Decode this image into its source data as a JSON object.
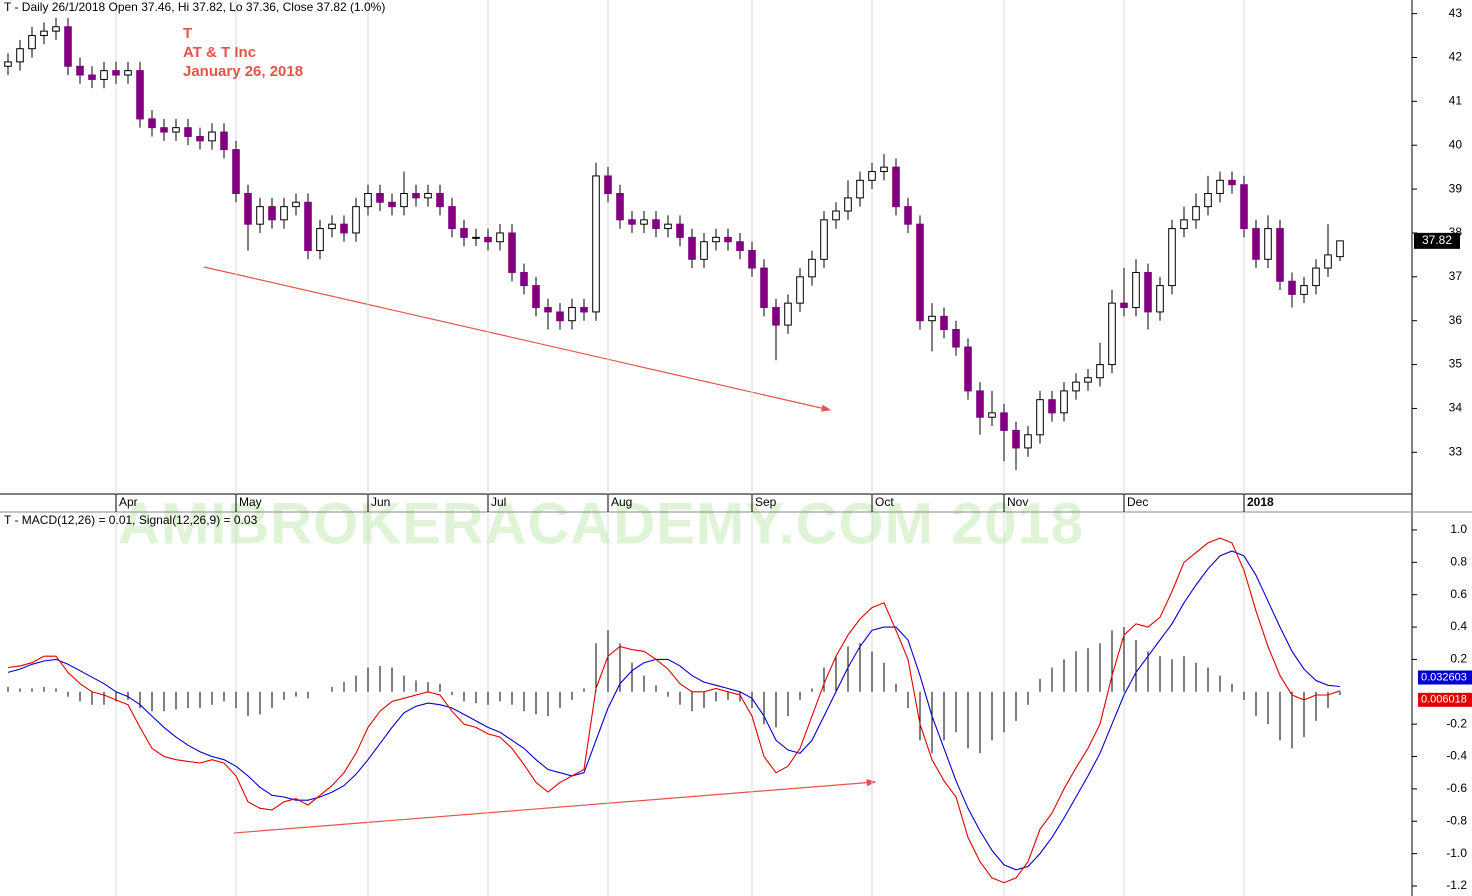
{
  "chart_data": [
    {
      "type": "candlestick",
      "title": "T - Daily 26/1/2018 Open 37.46, Hi 37.82, Lo 37.36, Close 37.82 (1.0%)",
      "annotations": [
        "T",
        "AT & T Inc",
        "January 26, 2018"
      ],
      "categories": [
        null,
        null,
        null,
        null,
        null,
        null,
        null,
        null,
        null,
        "Apr",
        null,
        null,
        null,
        null,
        null,
        null,
        null,
        null,
        null,
        "May",
        null,
        null,
        null,
        null,
        null,
        null,
        null,
        null,
        null,
        null,
        "Jun",
        null,
        null,
        null,
        null,
        null,
        null,
        null,
        null,
        null,
        "Jul",
        null,
        null,
        null,
        null,
        null,
        null,
        null,
        null,
        null,
        "Aug",
        null,
        null,
        null,
        null,
        null,
        null,
        null,
        null,
        null,
        null,
        null,
        "Sep",
        null,
        null,
        null,
        null,
        null,
        null,
        null,
        null,
        null,
        "Oct",
        null,
        null,
        null,
        null,
        null,
        null,
        null,
        null,
        null,
        null,
        "Nov",
        null,
        null,
        null,
        null,
        null,
        null,
        null,
        null,
        null,
        "Dec",
        null,
        null,
        null,
        null,
        null,
        null,
        null,
        null,
        null,
        "2018",
        null,
        null,
        null,
        null,
        null,
        null,
        null,
        null
      ],
      "open": [
        41.8,
        41.9,
        42.2,
        42.5,
        42.6,
        42.7,
        41.8,
        41.6,
        41.5,
        41.7,
        41.6,
        41.7,
        40.6,
        40.4,
        40.3,
        40.4,
        40.2,
        40.1,
        40.3,
        39.9,
        38.9,
        38.2,
        38.6,
        38.3,
        38.6,
        38.7,
        37.6,
        38.1,
        38.2,
        38.0,
        38.6,
        38.9,
        38.7,
        38.6,
        38.9,
        38.8,
        38.9,
        38.6,
        38.1,
        37.9,
        37.9,
        37.8,
        38.0,
        37.1,
        36.8,
        36.3,
        36.2,
        36.0,
        36.3,
        36.2,
        39.3,
        38.9,
        38.3,
        38.2,
        38.3,
        38.1,
        38.2,
        37.9,
        37.4,
        37.8,
        37.9,
        37.8,
        37.6,
        37.2,
        36.3,
        35.9,
        36.4,
        37.0,
        37.4,
        38.3,
        38.5,
        38.8,
        39.2,
        39.4,
        39.5,
        38.6,
        38.2,
        36.0,
        36.1,
        35.8,
        35.4,
        34.4,
        33.8,
        33.9,
        33.5,
        33.1,
        33.4,
        34.2,
        33.9,
        34.4,
        34.6,
        34.7,
        35.0,
        36.4,
        36.3,
        37.1,
        36.2,
        36.8,
        38.1,
        38.3,
        38.6,
        38.9,
        39.2,
        39.1,
        38.1,
        37.4,
        38.1,
        36.9,
        36.6,
        36.8,
        37.2,
        37.46
      ],
      "high": [
        42.1,
        42.4,
        42.7,
        42.8,
        42.9,
        42.9,
        42.0,
        41.8,
        41.9,
        41.9,
        41.9,
        41.9,
        40.8,
        40.6,
        40.6,
        40.6,
        40.4,
        40.5,
        40.5,
        40.1,
        39.1,
        38.8,
        38.8,
        38.8,
        38.9,
        38.9,
        38.3,
        38.4,
        38.4,
        38.8,
        39.1,
        39.1,
        38.9,
        39.4,
        39.1,
        39.1,
        39.1,
        38.8,
        38.3,
        38.1,
        38.1,
        38.2,
        38.2,
        37.3,
        37.0,
        36.5,
        36.4,
        36.5,
        36.5,
        39.6,
        39.5,
        39.1,
        38.5,
        38.5,
        38.5,
        38.4,
        38.4,
        38.1,
        38.0,
        38.1,
        38.1,
        38.0,
        37.8,
        37.4,
        36.5,
        36.6,
        37.2,
        37.6,
        38.5,
        38.7,
        39.2,
        39.4,
        39.6,
        39.8,
        39.7,
        38.8,
        38.4,
        36.4,
        36.3,
        36.0,
        35.6,
        34.6,
        34.4,
        34.1,
        33.7,
        33.6,
        34.4,
        34.4,
        34.6,
        34.8,
        34.9,
        35.5,
        36.7,
        37.2,
        37.4,
        37.3,
        37.0,
        38.3,
        38.6,
        38.9,
        39.3,
        39.4,
        39.4,
        39.3,
        38.3,
        38.4,
        38.3,
        37.1,
        37.0,
        37.4,
        38.2,
        37.82
      ],
      "low": [
        41.6,
        41.7,
        42.0,
        42.3,
        42.4,
        41.6,
        41.4,
        41.3,
        41.3,
        41.4,
        41.4,
        40.4,
        40.2,
        40.1,
        40.1,
        40.0,
        39.9,
        39.9,
        39.7,
        38.7,
        37.6,
        38.0,
        38.1,
        38.1,
        38.4,
        37.4,
        37.4,
        37.9,
        37.8,
        37.8,
        38.4,
        38.5,
        38.4,
        38.4,
        38.6,
        38.6,
        38.4,
        37.9,
        37.7,
        37.7,
        37.6,
        37.6,
        36.9,
        36.6,
        36.1,
        35.8,
        35.8,
        35.8,
        36.0,
        36.0,
        38.7,
        38.1,
        38.0,
        38.0,
        37.9,
        37.9,
        37.7,
        37.2,
        37.2,
        37.6,
        37.6,
        37.4,
        37.0,
        36.1,
        35.1,
        35.7,
        36.2,
        36.8,
        37.2,
        38.1,
        38.3,
        38.6,
        39.0,
        39.2,
        38.4,
        38.0,
        35.8,
        35.3,
        35.6,
        35.2,
        34.2,
        33.4,
        33.6,
        32.8,
        32.6,
        32.9,
        33.2,
        33.7,
        33.7,
        34.2,
        34.4,
        34.5,
        34.8,
        36.1,
        36.1,
        35.8,
        36.0,
        36.6,
        37.9,
        38.1,
        38.4,
        38.7,
        38.9,
        37.9,
        37.2,
        37.2,
        36.7,
        36.3,
        36.4,
        36.6,
        37.0,
        37.36
      ],
      "close": [
        41.9,
        42.2,
        42.5,
        42.6,
        42.7,
        41.8,
        41.6,
        41.5,
        41.7,
        41.6,
        41.7,
        40.6,
        40.4,
        40.3,
        40.4,
        40.2,
        40.1,
        40.3,
        39.9,
        38.9,
        38.2,
        38.6,
        38.3,
        38.6,
        38.7,
        37.6,
        38.1,
        38.2,
        38.0,
        38.6,
        38.9,
        38.7,
        38.6,
        38.9,
        38.8,
        38.9,
        38.6,
        38.1,
        37.9,
        37.9,
        37.8,
        38.0,
        37.1,
        36.8,
        36.3,
        36.2,
        36.0,
        36.3,
        36.2,
        39.3,
        38.9,
        38.3,
        38.2,
        38.3,
        38.1,
        38.2,
        37.9,
        37.4,
        37.8,
        37.9,
        37.8,
        37.6,
        37.2,
        36.3,
        35.9,
        36.4,
        37.0,
        37.4,
        38.3,
        38.5,
        38.8,
        39.2,
        39.4,
        39.5,
        38.6,
        38.2,
        36.0,
        36.1,
        35.8,
        35.4,
        34.4,
        33.8,
        33.9,
        33.5,
        33.1,
        33.4,
        34.2,
        33.9,
        34.4,
        34.6,
        34.7,
        35.0,
        36.4,
        36.3,
        37.1,
        36.2,
        36.8,
        38.1,
        38.3,
        38.6,
        38.9,
        39.2,
        39.1,
        38.1,
        37.4,
        38.1,
        36.9,
        36.6,
        36.8,
        37.2,
        37.5,
        37.82
      ],
      "up_color": "#ffffff",
      "down_color": "#800080",
      "ylim": [
        32.05,
        43.31
      ],
      "yticks": [
        33,
        34,
        35,
        36,
        37,
        38,
        39,
        40,
        41,
        42,
        43
      ]
    },
    {
      "type": "macd",
      "title": "T - MACD(12,26) = 0.01, Signal(12,26,9) = 0.03",
      "watermark": "AMIBROKERACADEMY.COM  2018",
      "macd": {
        "color": "#e00000",
        "values": [
          0.15,
          0.16,
          0.18,
          0.22,
          0.22,
          0.12,
          0.05,
          0,
          -0.02,
          -0.05,
          -0.08,
          -0.22,
          -0.35,
          -0.4,
          -0.42,
          -0.43,
          -0.44,
          -0.42,
          -0.44,
          -0.52,
          -0.68,
          -0.72,
          -0.73,
          -0.68,
          -0.66,
          -0.7,
          -0.64,
          -0.58,
          -0.5,
          -0.38,
          -0.22,
          -0.12,
          -0.06,
          -0.04,
          -0.02,
          0,
          -0.02,
          -0.12,
          -0.2,
          -0.22,
          -0.26,
          -0.28,
          -0.35,
          -0.45,
          -0.56,
          -0.62,
          -0.56,
          -0.52,
          -0.48,
          0.02,
          0.22,
          0.28,
          0.26,
          0.25,
          0.2,
          0.14,
          0.05,
          0,
          0,
          0.02,
          0,
          -0.02,
          -0.15,
          -0.4,
          -0.5,
          -0.46,
          -0.35,
          -0.15,
          0.05,
          0.22,
          0.35,
          0.45,
          0.52,
          0.55,
          0.38,
          0.2,
          -0.2,
          -0.42,
          -0.55,
          -0.65,
          -0.9,
          -1.05,
          -1.15,
          -1.18,
          -1.15,
          -1.05,
          -0.85,
          -0.75,
          -0.6,
          -0.47,
          -0.35,
          -0.2,
          0.1,
          0.35,
          0.42,
          0.4,
          0.46,
          0.62,
          0.8,
          0.86,
          0.92,
          0.95,
          0.92,
          0.75,
          0.5,
          0.28,
          0.1,
          -0.02,
          -0.05,
          -0.02,
          -0.02,
          0.006018
        ]
      },
      "signal": {
        "color": "#0000d0",
        "values": [
          0.12,
          0.14,
          0.17,
          0.19,
          0.2,
          0.17,
          0.13,
          0.09,
          0.05,
          0,
          -0.03,
          -0.08,
          -0.15,
          -0.22,
          -0.28,
          -0.33,
          -0.37,
          -0.4,
          -0.42,
          -0.46,
          -0.52,
          -0.59,
          -0.64,
          -0.65,
          -0.67,
          -0.67,
          -0.65,
          -0.62,
          -0.58,
          -0.51,
          -0.42,
          -0.32,
          -0.22,
          -0.13,
          -0.09,
          -0.07,
          -0.08,
          -0.1,
          -0.14,
          -0.18,
          -0.22,
          -0.25,
          -0.3,
          -0.35,
          -0.42,
          -0.48,
          -0.5,
          -0.52,
          -0.5,
          -0.3,
          -0.1,
          0.05,
          0.13,
          0.18,
          0.2,
          0.2,
          0.16,
          0.1,
          0.06,
          0.04,
          0.02,
          0,
          -0.04,
          -0.15,
          -0.3,
          -0.36,
          -0.38,
          -0.3,
          -0.15,
          0,
          0.15,
          0.28,
          0.38,
          0.4,
          0.4,
          0.32,
          0.1,
          -0.15,
          -0.35,
          -0.55,
          -0.72,
          -0.86,
          -0.98,
          -1.07,
          -1.1,
          -1.08,
          -1,
          -0.9,
          -0.78,
          -0.65,
          -0.52,
          -0.38,
          -0.2,
          -0.02,
          0.12,
          0.22,
          0.32,
          0.42,
          0.55,
          0.66,
          0.76,
          0.84,
          0.87,
          0.84,
          0.72,
          0.56,
          0.4,
          0.25,
          0.14,
          0.07,
          0.04,
          0.032603
        ]
      },
      "histogram": {
        "color": "#000000",
        "values": [
          0.03,
          0.02,
          0.02,
          0.03,
          0.02,
          -0.03,
          -0.06,
          -0.08,
          -0.08,
          -0.06,
          -0.05,
          -0.1,
          -0.12,
          -0.12,
          -0.11,
          -0.1,
          -0.1,
          -0.08,
          -0.06,
          -0.1,
          -0.15,
          -0.14,
          -0.1,
          -0.05,
          -0.03,
          -0.04,
          0,
          0.03,
          0.06,
          0.1,
          0.15,
          0.16,
          0.15,
          0.1,
          0.07,
          0.06,
          0.05,
          -0.02,
          -0.06,
          -0.07,
          -0.08,
          -0.06,
          -0.08,
          -0.12,
          -0.14,
          -0.15,
          -0.1,
          -0.05,
          0.02,
          0.3,
          0.38,
          0.3,
          0.18,
          0.1,
          0.04,
          -0.03,
          -0.08,
          -0.12,
          -0.1,
          -0.06,
          -0.05,
          -0.06,
          -0.1,
          -0.2,
          -0.22,
          -0.15,
          -0.05,
          0.02,
          0.15,
          0.22,
          0.28,
          0.3,
          0.25,
          0.18,
          0.05,
          -0.1,
          -0.3,
          -0.38,
          -0.3,
          -0.25,
          -0.35,
          -0.38,
          -0.3,
          -0.25,
          -0.18,
          -0.08,
          0.08,
          0.15,
          0.2,
          0.25,
          0.27,
          0.3,
          0.38,
          0.4,
          0.32,
          0.25,
          0.22,
          0.2,
          0.22,
          0.18,
          0.15,
          0.1,
          0.05,
          -0.05,
          -0.15,
          -0.2,
          -0.3,
          -0.35,
          -0.28,
          -0.18,
          -0.1,
          -0.02
        ]
      },
      "ylim": [
        -1.262,
        1.111
      ],
      "yticks": [
        {
          "value": 1,
          "label": "1.0"
        },
        0.8,
        0.6,
        0.4,
        0.2,
        -0.2,
        -0.4,
        -0.6,
        -0.8,
        {
          "value": -1,
          "label": "-1.0"
        },
        -1.2
      ]
    }
  ]
}
